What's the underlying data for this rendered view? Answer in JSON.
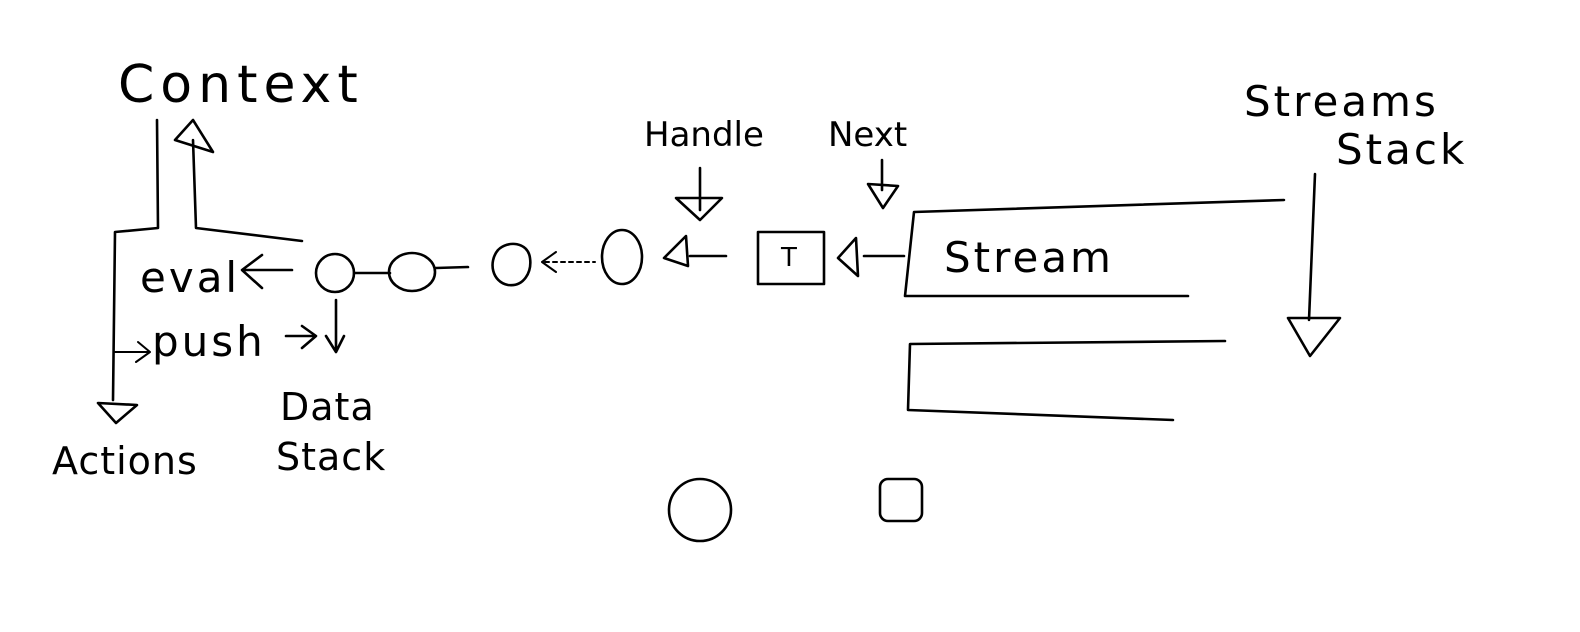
{
  "diagram": {
    "labels": {
      "context": "Context",
      "eval": "eval",
      "push": "push",
      "actions": "Actions",
      "data_stack_line1": "Data",
      "data_stack_line2": "Stack",
      "handle": "Handle",
      "next": "Next",
      "token": "T",
      "stream": "Stream",
      "streams_stack_line1": "Streams",
      "streams_stack_line2": "Stack"
    },
    "icons": {
      "stroke_color": "#000000",
      "background_color": "#ffffff"
    }
  }
}
